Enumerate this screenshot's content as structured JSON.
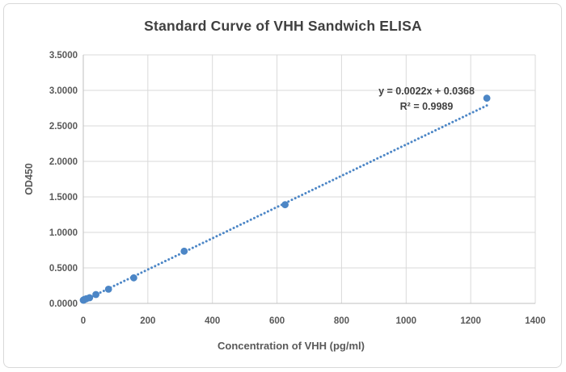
{
  "chart_data": {
    "type": "scatter",
    "title": "Standard Curve of VHH Sandwich ELISA",
    "xlabel": "Concentration of VHH (pg/ml)",
    "ylabel": "OD450",
    "xlim": [
      0,
      1400
    ],
    "ylim": [
      0,
      3.5
    ],
    "x_ticks": [
      0,
      200,
      400,
      600,
      800,
      1000,
      1200,
      1400
    ],
    "y_ticks": [
      0,
      0.5,
      1,
      1.5,
      2,
      2.5,
      3,
      3.5
    ],
    "y_tick_decimals": 4,
    "grid": true,
    "legend": false,
    "marker_color": "#4c86c6",
    "grid_color": "#d9d9d9",
    "axis_color": "#bfbfbf",
    "points": [
      [
        0,
        0.045
      ],
      [
        1.2,
        0.05
      ],
      [
        2.4,
        0.053
      ],
      [
        4.9,
        0.058
      ],
      [
        9.8,
        0.066
      ],
      [
        19.5,
        0.08
      ],
      [
        39.1,
        0.125
      ],
      [
        78.1,
        0.2
      ],
      [
        156.3,
        0.36
      ],
      [
        312.5,
        0.735
      ],
      [
        625,
        1.39
      ],
      [
        1250,
        2.89
      ]
    ],
    "trendline": {
      "style": "dotted",
      "slope": 0.0022,
      "intercept": 0.0368,
      "x_start": 0,
      "x_end": 1250,
      "equation": "y = 0.0022x + 0.0368",
      "r_squared": "R² = 0.9989"
    }
  }
}
